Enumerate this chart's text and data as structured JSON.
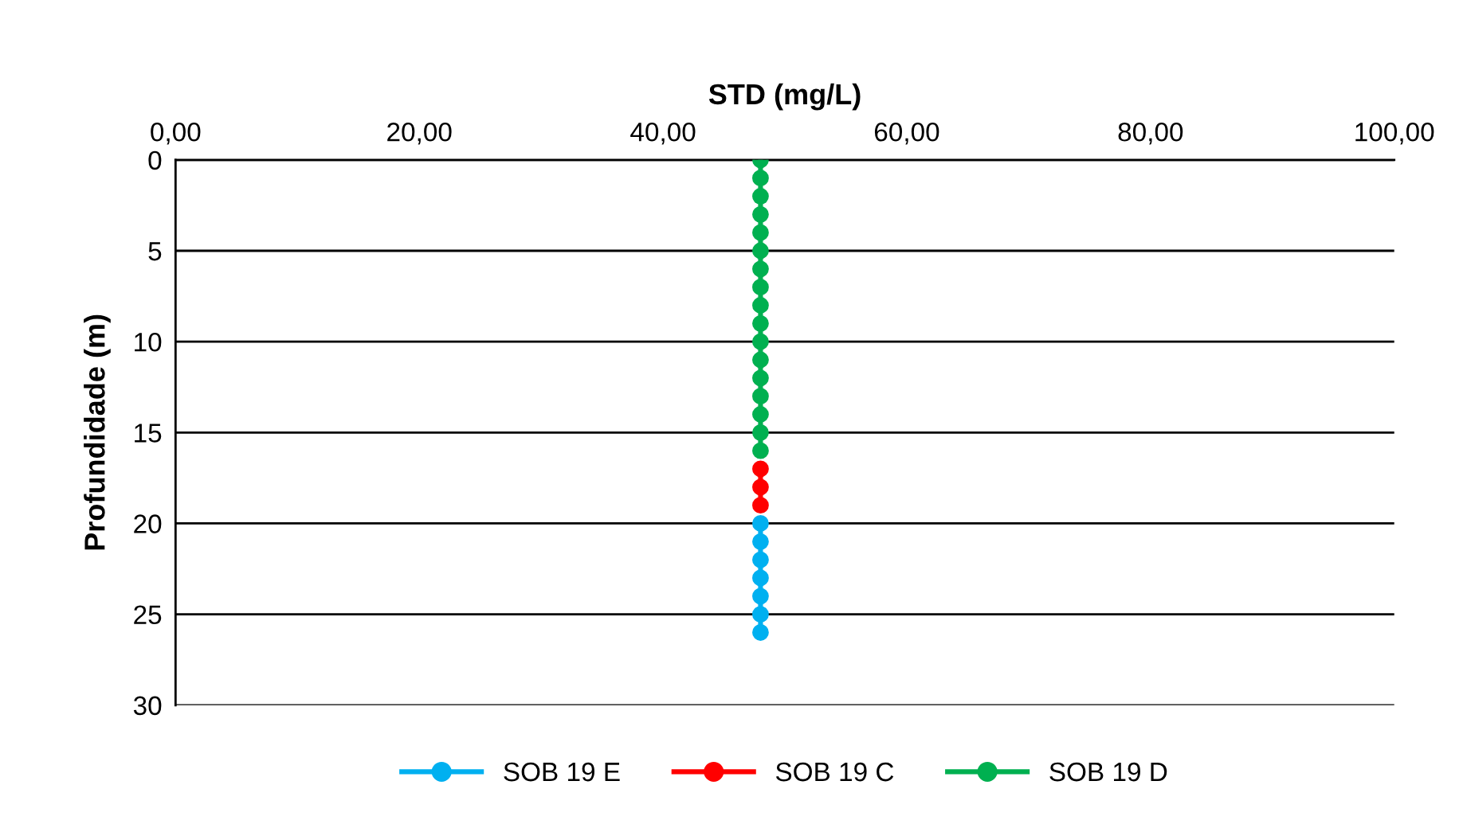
{
  "chart_data": {
    "type": "line",
    "orientation": "horizontal",
    "xlabel": "STD (mg/L)",
    "ylabel": "Profundidade (m)",
    "xlim": [
      0,
      100
    ],
    "xticks": [
      {
        "value": 0,
        "label": "0,00"
      },
      {
        "value": 20,
        "label": "20,00"
      },
      {
        "value": 40,
        "label": "40,00"
      },
      {
        "value": 60,
        "label": "60,00"
      },
      {
        "value": 80,
        "label": "80,00"
      },
      {
        "value": 100,
        "label": "100,00"
      }
    ],
    "ylim": [
      30,
      0
    ],
    "yticks": [
      0,
      5,
      10,
      15,
      20,
      25,
      30
    ],
    "grid": "y",
    "legend": "bottom",
    "marker": "circle",
    "line_style": "solid",
    "series": [
      {
        "name": "SOB 19 E",
        "color": "#00b0f0",
        "x": [
          20,
          21,
          22,
          23,
          24,
          25,
          26
        ],
        "values": [
          48,
          48,
          48,
          48,
          48,
          48,
          48
        ]
      },
      {
        "name": "SOB 19 C",
        "color": "#ff0000",
        "x": [
          17,
          18,
          19
        ],
        "values": [
          48,
          48,
          48
        ]
      },
      {
        "name": "SOB 19 D",
        "color": "#00b050",
        "x": [
          0,
          1,
          2,
          3,
          4,
          5,
          6,
          7,
          8,
          9,
          10,
          11,
          12,
          13,
          14,
          15,
          16
        ],
        "values": [
          48,
          48,
          48,
          48,
          48,
          48,
          48,
          48,
          48,
          48,
          48,
          48,
          48,
          48,
          48,
          48,
          48
        ]
      }
    ]
  }
}
